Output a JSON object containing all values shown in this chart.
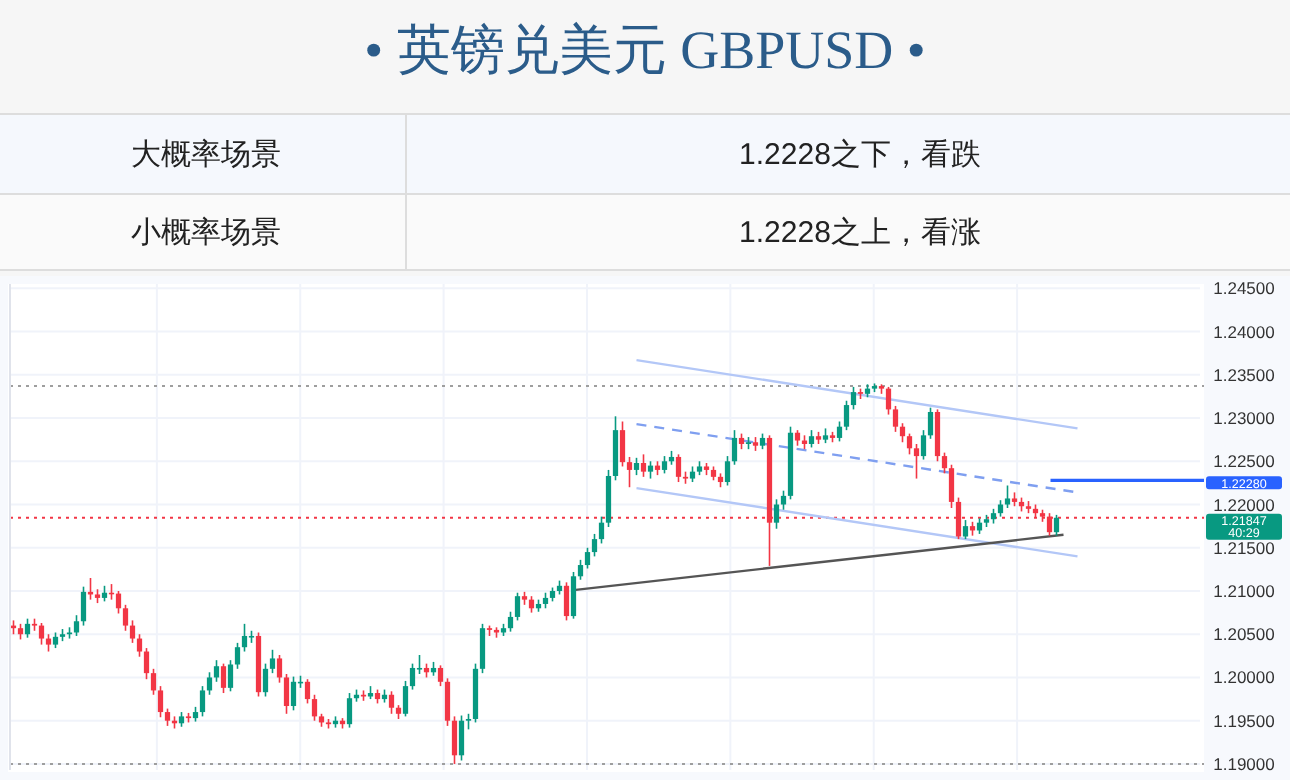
{
  "chart_data": {
    "type": "candlestick",
    "title": "• 英镑兑美元 GBPUSD •",
    "annotations": [
      "大概率场景",
      "1.2228之下，看跌",
      "小概率场景",
      "1.2228之上，看涨"
    ],
    "categories": [
      null,
      null,
      null,
      null,
      null,
      null,
      null,
      null,
      null,
      null,
      null,
      null,
      null,
      null,
      null,
      null,
      null,
      null,
      null,
      null,
      null,
      null,
      null,
      null,
      null,
      null,
      null,
      null,
      null,
      null,
      null,
      null,
      null,
      null,
      null,
      null,
      null,
      null,
      null,
      null,
      null,
      null,
      null,
      null,
      null,
      null,
      null,
      null,
      null,
      null,
      null,
      null,
      null,
      null,
      null,
      null,
      null,
      null,
      null,
      null,
      null,
      null,
      null,
      null,
      null,
      null,
      null,
      null,
      null,
      null,
      null,
      null,
      null,
      null,
      null,
      null,
      null,
      null,
      null,
      null,
      null,
      null,
      null,
      null,
      null,
      null,
      null,
      null,
      null,
      null,
      null,
      null,
      null,
      null,
      null,
      null,
      null,
      null,
      null,
      null,
      null,
      null,
      null,
      null,
      null,
      null,
      null,
      null,
      null,
      null,
      null,
      null,
      null,
      null,
      null,
      null,
      null,
      null,
      null,
      null,
      null,
      null,
      null,
      null,
      null,
      null,
      null,
      null,
      null,
      null,
      null,
      null,
      null,
      null,
      null,
      null,
      null,
      null,
      null,
      null,
      null,
      null,
      null,
      null,
      null,
      null,
      null,
      null,
      null,
      null,
      null,
      null,
      null,
      null,
      null,
      null,
      null,
      null,
      null,
      null,
      null,
      null,
      null,
      null,
      null,
      null,
      null,
      null,
      null,
      null
    ],
    "ohlc": [
      [
        1.206,
        1.2066,
        1.205,
        1.2057
      ],
      [
        1.2057,
        1.2062,
        1.2044,
        1.205
      ],
      [
        1.205,
        1.2068,
        1.2046,
        1.2062
      ],
      [
        1.2062,
        1.2068,
        1.2054,
        1.206
      ],
      [
        1.206,
        1.2063,
        1.2038,
        1.2045
      ],
      [
        1.2045,
        1.205,
        1.203,
        1.2038
      ],
      [
        1.2038,
        1.2052,
        1.2034,
        1.2047
      ],
      [
        1.2047,
        1.2056,
        1.2042,
        1.205
      ],
      [
        1.205,
        1.2058,
        1.2045,
        1.2052
      ],
      [
        1.2052,
        1.2072,
        1.2048,
        1.2065
      ],
      [
        1.2065,
        1.2105,
        1.206,
        1.2099
      ],
      [
        1.2099,
        1.2115,
        1.209,
        1.2096
      ],
      [
        1.2096,
        1.2102,
        1.2086,
        1.2092
      ],
      [
        1.2092,
        1.2106,
        1.2088,
        1.2098
      ],
      [
        1.2098,
        1.2108,
        1.209,
        1.2097
      ],
      [
        1.2097,
        1.21,
        1.2074,
        1.208
      ],
      [
        1.208,
        1.2084,
        1.2054,
        1.206
      ],
      [
        1.206,
        1.2066,
        1.204,
        1.2045
      ],
      [
        1.2045,
        1.205,
        1.2024,
        1.203
      ],
      [
        1.203,
        1.2034,
        1.1998,
        1.2005
      ],
      [
        1.2005,
        1.201,
        1.198,
        1.1985
      ],
      [
        1.1985,
        1.199,
        1.1954,
        1.196
      ],
      [
        1.196,
        1.1964,
        1.1944,
        1.195
      ],
      [
        1.195,
        1.1955,
        1.1941,
        1.1947
      ],
      [
        1.1947,
        1.196,
        1.1943,
        1.1955
      ],
      [
        1.1955,
        1.1959,
        1.1948,
        1.1953
      ],
      [
        1.1953,
        1.1966,
        1.1949,
        1.196
      ],
      [
        1.196,
        1.199,
        1.1955,
        1.1985
      ],
      [
        1.1985,
        1.2006,
        1.198,
        1.2
      ],
      [
        1.2,
        1.202,
        1.1995,
        1.2013
      ],
      [
        1.2013,
        1.2016,
        1.1982,
        1.1988
      ],
      [
        1.1988,
        1.202,
        1.1984,
        1.2015
      ],
      [
        1.2015,
        1.204,
        1.201,
        1.2035
      ],
      [
        1.2035,
        1.2062,
        1.203,
        1.2048
      ],
      [
        1.2048,
        1.2054,
        1.204,
        1.2048
      ],
      [
        1.2048,
        1.2052,
        1.1978,
        1.1983
      ],
      [
        1.1983,
        1.2016,
        1.1978,
        1.201
      ],
      [
        1.201,
        1.2032,
        1.2005,
        1.2022
      ],
      [
        1.2022,
        1.2026,
        1.1994,
        1.2
      ],
      [
        1.2,
        1.2004,
        1.1958,
        1.1967
      ],
      [
        1.1967,
        1.2001,
        1.1962,
        1.1995
      ],
      [
        1.1995,
        1.2002,
        1.1988,
        1.1995
      ],
      [
        1.1995,
        1.1998,
        1.197,
        1.1975
      ],
      [
        1.1975,
        1.198,
        1.195,
        1.1955
      ],
      [
        1.1955,
        1.1958,
        1.1943,
        1.1948
      ],
      [
        1.1948,
        1.1952,
        1.1941,
        1.1946
      ],
      [
        1.1946,
        1.1955,
        1.1942,
        1.195
      ],
      [
        1.195,
        1.1953,
        1.1941,
        1.1946
      ],
      [
        1.1946,
        1.1982,
        1.1942,
        1.1976
      ],
      [
        1.1976,
        1.1986,
        1.1972,
        1.198
      ],
      [
        1.198,
        1.1985,
        1.1973,
        1.1978
      ],
      [
        1.1978,
        1.199,
        1.1975,
        1.1982
      ],
      [
        1.1982,
        1.1986,
        1.197,
        1.1975
      ],
      [
        1.1975,
        1.1986,
        1.1971,
        1.198
      ],
      [
        1.198,
        1.1984,
        1.1958,
        1.1965
      ],
      [
        1.1965,
        1.1968,
        1.1952,
        1.1958
      ],
      [
        1.1958,
        1.1996,
        1.1955,
        1.199
      ],
      [
        1.199,
        1.2016,
        1.1986,
        1.2011
      ],
      [
        1.2011,
        1.2026,
        1.2004,
        1.2011
      ],
      [
        1.2011,
        1.2016,
        1.2,
        1.2006
      ],
      [
        1.2006,
        1.2018,
        1.2002,
        1.2011
      ],
      [
        1.2011,
        1.2014,
        1.199,
        1.1995
      ],
      [
        1.1995,
        1.1999,
        1.1944,
        1.195
      ],
      [
        1.195,
        1.1955,
        1.19,
        1.191
      ],
      [
        1.191,
        1.1956,
        1.1904,
        1.195
      ],
      [
        1.195,
        1.1958,
        1.194,
        1.1952
      ],
      [
        1.1952,
        1.2016,
        1.1948,
        1.201
      ],
      [
        1.201,
        1.2062,
        1.2005,
        1.2057
      ],
      [
        1.2057,
        1.206,
        1.2048,
        1.2055
      ],
      [
        1.2055,
        1.2058,
        1.2046,
        1.2052
      ],
      [
        1.2052,
        1.2062,
        1.2048,
        1.2057
      ],
      [
        1.2057,
        1.2076,
        1.2053,
        1.207
      ],
      [
        1.207,
        1.2098,
        1.2066,
        1.2094
      ],
      [
        1.2094,
        1.2099,
        1.2084,
        1.209
      ],
      [
        1.209,
        1.2094,
        1.2075,
        1.208
      ],
      [
        1.208,
        1.209,
        1.2076,
        1.2085
      ],
      [
        1.2085,
        1.2098,
        1.208,
        1.2092
      ],
      [
        1.2092,
        1.2104,
        1.2088,
        1.21
      ],
      [
        1.21,
        1.2112,
        1.2096,
        1.2106
      ],
      [
        1.2106,
        1.211,
        1.2066,
        1.2071
      ],
      [
        1.2071,
        1.2122,
        1.2068,
        1.2117
      ],
      [
        1.2117,
        1.2136,
        1.2113,
        1.213
      ],
      [
        1.213,
        1.215,
        1.2126,
        1.2145
      ],
      [
        1.2145,
        1.2166,
        1.214,
        1.216
      ],
      [
        1.216,
        1.2186,
        1.2155,
        1.2179
      ],
      [
        1.2179,
        1.224,
        1.2174,
        1.2233
      ],
      [
        1.2233,
        1.2302,
        1.2228,
        1.2286
      ],
      [
        1.2286,
        1.2296,
        1.2244,
        1.2249
      ],
      [
        1.2249,
        1.2255,
        1.222,
        1.224
      ],
      [
        1.224,
        1.2254,
        1.2234,
        1.2248
      ],
      [
        1.2248,
        1.2258,
        1.2232,
        1.2238
      ],
      [
        1.2238,
        1.225,
        1.223,
        1.2245
      ],
      [
        1.2245,
        1.225,
        1.2234,
        1.224
      ],
      [
        1.224,
        1.2256,
        1.2236,
        1.225
      ],
      [
        1.225,
        1.2262,
        1.2246,
        1.2255
      ],
      [
        1.2255,
        1.2258,
        1.2226,
        1.2232
      ],
      [
        1.2232,
        1.2238,
        1.2224,
        1.223
      ],
      [
        1.223,
        1.2244,
        1.2226,
        1.2238
      ],
      [
        1.2238,
        1.225,
        1.2234,
        1.2244
      ],
      [
        1.2244,
        1.2248,
        1.2234,
        1.224
      ],
      [
        1.224,
        1.2244,
        1.2228,
        1.2232
      ],
      [
        1.2232,
        1.2236,
        1.222,
        1.2226
      ],
      [
        1.2226,
        1.2256,
        1.2222,
        1.225
      ],
      [
        1.225,
        1.2286,
        1.2246,
        1.2277
      ],
      [
        1.2277,
        1.2282,
        1.2264,
        1.227
      ],
      [
        1.227,
        1.2278,
        1.2264,
        1.2272
      ],
      [
        1.2272,
        1.2278,
        1.2262,
        1.2268
      ],
      [
        1.2268,
        1.2282,
        1.2264,
        1.2277
      ],
      [
        1.2277,
        1.228,
        1.2129,
        1.2179
      ],
      [
        1.2179,
        1.2206,
        1.2172,
        1.22
      ],
      [
        1.22,
        1.2216,
        1.2194,
        1.221
      ],
      [
        1.221,
        1.229,
        1.2206,
        1.2283
      ],
      [
        1.2283,
        1.2286,
        1.2268,
        1.2274
      ],
      [
        1.2274,
        1.228,
        1.2264,
        1.227
      ],
      [
        1.227,
        1.2286,
        1.2266,
        1.2279
      ],
      [
        1.2279,
        1.2284,
        1.227,
        1.2275
      ],
      [
        1.2275,
        1.2288,
        1.2271,
        1.228
      ],
      [
        1.228,
        1.2284,
        1.2272,
        1.2277
      ],
      [
        1.2277,
        1.2296,
        1.2273,
        1.229
      ],
      [
        1.229,
        1.232,
        1.2286,
        1.2315
      ],
      [
        1.2315,
        1.2336,
        1.231,
        1.233
      ],
      [
        1.233,
        1.2334,
        1.2322,
        1.2328
      ],
      [
        1.2328,
        1.2339,
        1.2324,
        1.2334
      ],
      [
        1.2334,
        1.234,
        1.233,
        1.2337
      ],
      [
        1.2337,
        1.2339,
        1.2328,
        1.2334
      ],
      [
        1.2334,
        1.2336,
        1.2304,
        1.231
      ],
      [
        1.231,
        1.2314,
        1.2284,
        1.229
      ],
      [
        1.229,
        1.2294,
        1.2272,
        1.2279
      ],
      [
        1.2279,
        1.2282,
        1.2258,
        1.2265
      ],
      [
        1.2265,
        1.227,
        1.223,
        1.2256
      ],
      [
        1.2256,
        1.2286,
        1.2252,
        1.228
      ],
      [
        1.228,
        1.2312,
        1.2276,
        1.2307
      ],
      [
        1.2307,
        1.231,
        1.225,
        1.2256
      ],
      [
        1.2256,
        1.226,
        1.2236,
        1.2242
      ],
      [
        1.2242,
        1.2246,
        1.2196,
        1.2203
      ],
      [
        1.2203,
        1.2208,
        1.216,
        1.2163
      ],
      [
        1.2163,
        1.2182,
        1.216,
        1.2175
      ],
      [
        1.2175,
        1.218,
        1.2164,
        1.217
      ],
      [
        1.217,
        1.2184,
        1.2166,
        1.2179
      ],
      [
        1.2179,
        1.2188,
        1.2174,
        1.2183
      ],
      [
        1.2183,
        1.2195,
        1.2178,
        1.219
      ],
      [
        1.219,
        1.2205,
        1.2186,
        1.22
      ],
      [
        1.22,
        1.2222,
        1.2196,
        1.2207
      ],
      [
        1.2207,
        1.2214,
        1.2198,
        1.2203
      ],
      [
        1.2203,
        1.2208,
        1.2192,
        1.2198
      ],
      [
        1.2198,
        1.2204,
        1.219,
        1.2195
      ],
      [
        1.2195,
        1.22,
        1.2185,
        1.219
      ],
      [
        1.219,
        1.2194,
        1.218,
        1.2186
      ],
      [
        1.2186,
        1.219,
        1.2164,
        1.2168
      ],
      [
        1.2168,
        1.2188,
        1.2164,
        1.21847
      ],
      null,
      null,
      null,
      null,
      null,
      null,
      null,
      null,
      null,
      null,
      null,
      null,
      null,
      null,
      null,
      null,
      null,
      null,
      null,
      null
    ],
    "series": [
      {
        "type": "line",
        "color": "#b3c7f7",
        "line_style": "solid",
        "values": [
          null,
          null,
          null,
          null,
          null,
          null,
          null,
          null,
          null,
          null,
          null,
          null,
          null,
          null,
          null,
          null,
          null,
          null,
          null,
          null,
          null,
          null,
          null,
          null,
          null,
          null,
          null,
          null,
          null,
          null,
          null,
          null,
          null,
          null,
          null,
          null,
          null,
          null,
          null,
          null,
          null,
          null,
          null,
          null,
          null,
          null,
          null,
          null,
          null,
          null,
          null,
          null,
          null,
          null,
          null,
          null,
          null,
          null,
          null,
          null,
          null,
          null,
          null,
          null,
          null,
          null,
          null,
          null,
          null,
          null,
          null,
          null,
          null,
          null,
          null,
          null,
          null,
          null,
          null,
          null,
          null,
          null,
          null,
          null,
          null,
          null,
          null,
          null,
          null,
          1.2367,
          null,
          null,
          null,
          null,
          null,
          null,
          null,
          null,
          null,
          null,
          null,
          null,
          null,
          null,
          null,
          null,
          null,
          null,
          null,
          null,
          null,
          null,
          null,
          null,
          null,
          null,
          null,
          null,
          null,
          null,
          null,
          null,
          null,
          null,
          null,
          null,
          null,
          null,
          null,
          null,
          null,
          null,
          null,
          null,
          null,
          null,
          null,
          null,
          null,
          null,
          null,
          null,
          null,
          null,
          null,
          null,
          null,
          null,
          null,
          null,
          null,
          null,
          1.2288,
          null,
          null,
          null,
          null,
          null,
          null,
          null,
          null,
          null,
          null,
          null,
          null,
          null,
          null,
          null,
          null,
          null
        ]
      },
      {
        "type": "line",
        "color": "#7f9ff0",
        "line_style": "dashed",
        "values": [
          null,
          null,
          null,
          null,
          null,
          null,
          null,
          null,
          null,
          null,
          null,
          null,
          null,
          null,
          null,
          null,
          null,
          null,
          null,
          null,
          null,
          null,
          null,
          null,
          null,
          null,
          null,
          null,
          null,
          null,
          null,
          null,
          null,
          null,
          null,
          null,
          null,
          null,
          null,
          null,
          null,
          null,
          null,
          null,
          null,
          null,
          null,
          null,
          null,
          null,
          null,
          null,
          null,
          null,
          null,
          null,
          null,
          null,
          null,
          null,
          null,
          null,
          null,
          null,
          null,
          null,
          null,
          null,
          null,
          null,
          null,
          null,
          null,
          null,
          null,
          null,
          null,
          null,
          null,
          null,
          null,
          null,
          null,
          null,
          null,
          null,
          null,
          null,
          null,
          1.2293,
          null,
          null,
          null,
          null,
          null,
          null,
          null,
          null,
          null,
          null,
          null,
          null,
          null,
          null,
          null,
          null,
          null,
          null,
          null,
          null,
          null,
          null,
          null,
          null,
          null,
          null,
          null,
          null,
          null,
          null,
          null,
          null,
          null,
          null,
          null,
          null,
          null,
          null,
          null,
          null,
          null,
          null,
          null,
          null,
          null,
          null,
          null,
          null,
          null,
          null,
          null,
          null,
          null,
          null,
          null,
          null,
          null,
          null,
          null,
          null,
          null,
          null,
          1.2214,
          null,
          null,
          null,
          null,
          null,
          null,
          null,
          null,
          null,
          null,
          null,
          null,
          null,
          null,
          null,
          null,
          null
        ]
      },
      {
        "type": "line",
        "color": "#b3c7f7",
        "line_style": "solid",
        "values": [
          null,
          null,
          null,
          null,
          null,
          null,
          null,
          null,
          null,
          null,
          null,
          null,
          null,
          null,
          null,
          null,
          null,
          null,
          null,
          null,
          null,
          null,
          null,
          null,
          null,
          null,
          null,
          null,
          null,
          null,
          null,
          null,
          null,
          null,
          null,
          null,
          null,
          null,
          null,
          null,
          null,
          null,
          null,
          null,
          null,
          null,
          null,
          null,
          null,
          null,
          null,
          null,
          null,
          null,
          null,
          null,
          null,
          null,
          null,
          null,
          null,
          null,
          null,
          null,
          null,
          null,
          null,
          null,
          null,
          null,
          null,
          null,
          null,
          null,
          null,
          null,
          null,
          null,
          null,
          null,
          null,
          null,
          null,
          null,
          null,
          null,
          null,
          null,
          null,
          1.2219,
          null,
          null,
          null,
          null,
          null,
          null,
          null,
          null,
          null,
          null,
          null,
          null,
          null,
          null,
          null,
          null,
          null,
          null,
          null,
          null,
          null,
          null,
          null,
          null,
          null,
          null,
          null,
          null,
          null,
          null,
          null,
          null,
          null,
          null,
          null,
          null,
          null,
          null,
          null,
          null,
          null,
          null,
          null,
          null,
          null,
          null,
          null,
          null,
          null,
          null,
          null,
          null,
          null,
          null,
          null,
          null,
          null,
          null,
          null,
          null,
          null,
          null,
          1.214,
          null,
          null,
          null,
          null,
          null,
          null,
          null,
          null,
          null,
          null,
          null,
          null,
          null,
          null,
          null,
          null,
          null
        ]
      },
      {
        "type": "line",
        "color": "#555555",
        "line_style": "solid",
        "values": [
          null,
          null,
          null,
          null,
          null,
          null,
          null,
          null,
          null,
          null,
          null,
          null,
          null,
          null,
          null,
          null,
          null,
          null,
          null,
          null,
          null,
          null,
          null,
          null,
          null,
          null,
          null,
          null,
          null,
          null,
          null,
          null,
          null,
          null,
          null,
          null,
          null,
          null,
          null,
          null,
          null,
          null,
          null,
          null,
          null,
          null,
          null,
          null,
          null,
          null,
          null,
          null,
          null,
          null,
          null,
          null,
          null,
          null,
          null,
          null,
          null,
          null,
          null,
          null,
          null,
          null,
          null,
          null,
          null,
          null,
          null,
          null,
          null,
          null,
          null,
          null,
          null,
          null,
          null,
          null,
          1.2101,
          null,
          null,
          null,
          null,
          null,
          null,
          null,
          null,
          null,
          null,
          null,
          null,
          null,
          null,
          null,
          null,
          null,
          null,
          null,
          null,
          null,
          null,
          null,
          null,
          null,
          null,
          null,
          null,
          null,
          null,
          null,
          null,
          null,
          null,
          null,
          null,
          null,
          null,
          null,
          null,
          null,
          null,
          null,
          null,
          null,
          null,
          null,
          null,
          null,
          null,
          null,
          null,
          null,
          null,
          null,
          null,
          null,
          null,
          null,
          null,
          null,
          null,
          null,
          null,
          null,
          null,
          null,
          null,
          null,
          1.2165,
          null,
          null,
          null,
          null,
          null,
          null,
          null,
          null,
          null,
          null,
          null,
          null,
          null,
          null,
          null,
          null,
          null,
          null,
          null
        ]
      }
    ],
    "ylim": [
      1.1893,
      1.2455
    ],
    "yticks": [
      {
        "value": 1.19,
        "label": "1.19000"
      },
      {
        "value": 1.195,
        "label": "1.19500"
      },
      {
        "value": 1.2,
        "label": "1.20000"
      },
      {
        "value": 1.205,
        "label": "1.20500"
      },
      {
        "value": 1.21,
        "label": "1.21000"
      },
      {
        "value": 1.215,
        "label": "1.21500"
      },
      {
        "value": 1.22,
        "label": "1.22000"
      },
      {
        "value": 1.225,
        "label": "1.22500"
      },
      {
        "value": 1.23,
        "label": "1.23000"
      },
      {
        "value": 1.235,
        "label": "1.23500"
      },
      {
        "value": 1.24,
        "label": "1.24000"
      },
      {
        "value": 1.245,
        "label": "1.24500"
      }
    ],
    "ref_lines": [
      {
        "axis": "y",
        "value": 1.2337,
        "color": "#9e9e9e",
        "line_style": "dotted"
      },
      {
        "axis": "y",
        "value": 1.19,
        "color": "#9e9e9e",
        "line_style": "dotted"
      },
      {
        "axis": "y",
        "value": 1.21847,
        "label": "1.21847 40:29",
        "color": "#f23645",
        "line_style": "dotted"
      },
      {
        "axis": "y",
        "value": 1.2228,
        "label": "1.22280",
        "color": "#2962ff",
        "line_style": "solid"
      }
    ],
    "tick_labels": "y",
    "grid": true
  }
}
